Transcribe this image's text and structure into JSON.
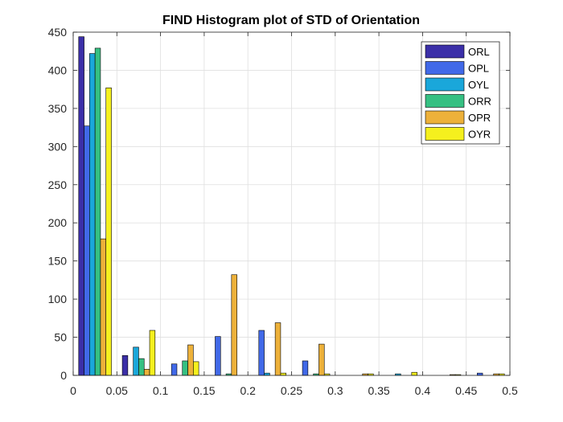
{
  "chart_data": {
    "type": "bar",
    "title": "FIND Histogram plot of STD of Orientation",
    "xlabel": "",
    "ylabel": "",
    "xlim": [
      0,
      0.5
    ],
    "ylim": [
      0,
      450
    ],
    "grid": true,
    "legend_position": "top-right",
    "x_ticks": [
      "0",
      "0.05",
      "0.1",
      "0.15",
      "0.2",
      "0.25",
      "0.3",
      "0.35",
      "0.4",
      "0.45",
      "0.5"
    ],
    "y_ticks": [
      "0",
      "50",
      "100",
      "150",
      "200",
      "250",
      "300",
      "350",
      "400",
      "450"
    ],
    "bin_centers": [
      0.025,
      0.075,
      0.125,
      0.175,
      0.225,
      0.275,
      0.325,
      0.375,
      0.425,
      0.475
    ],
    "series": [
      {
        "name": "ORL",
        "color": "#3b2fa8",
        "values": [
          444,
          26,
          0,
          0,
          0,
          0,
          0,
          0,
          0,
          0
        ]
      },
      {
        "name": "OPL",
        "color": "#4169e8",
        "values": [
          327,
          0,
          15,
          51,
          59,
          19,
          0,
          0,
          0,
          3
        ]
      },
      {
        "name": "OYL",
        "color": "#1aa7da",
        "values": [
          422,
          37,
          0,
          0,
          3,
          0,
          0,
          2,
          0,
          0
        ]
      },
      {
        "name": "ORR",
        "color": "#36c082",
        "values": [
          429,
          22,
          19,
          2,
          0,
          2,
          0,
          0,
          0,
          0
        ]
      },
      {
        "name": "OPR",
        "color": "#edb13a",
        "values": [
          179,
          8,
          40,
          132,
          69,
          41,
          2,
          0,
          1,
          2
        ]
      },
      {
        "name": "OYR",
        "color": "#f5f01e",
        "values": [
          377,
          59,
          18,
          0,
          3,
          2,
          2,
          4,
          1,
          2
        ]
      }
    ]
  }
}
